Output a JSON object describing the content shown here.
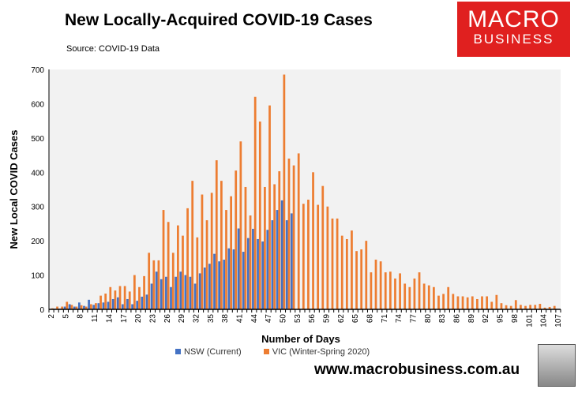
{
  "title": "New Locally-Acquired COVID-19 Cases",
  "source": "Source: COVID-19 Data",
  "logo": {
    "line1": "MACRO",
    "line2": "BUSINESS",
    "color": "#e0201f"
  },
  "footer_url": "www.macrobusiness.com.au",
  "chart_data": {
    "type": "bar",
    "xlabel": "Number of Days",
    "ylabel": "New Local COVID Cases",
    "ylim": [
      0,
      700
    ],
    "yticks": [
      0,
      100,
      200,
      300,
      400,
      500,
      600,
      700
    ],
    "x_start": 2,
    "x_end": 107,
    "x_tick_step": 3,
    "legend": "bottom",
    "grid": false,
    "series": [
      {
        "name": "NSW (Current)",
        "color": "#4472c4",
        "values": [
          0,
          2,
          2,
          8,
          15,
          8,
          20,
          10,
          28,
          13,
          18,
          20,
          22,
          30,
          35,
          15,
          30,
          15,
          25,
          37,
          43,
          75,
          110,
          88,
          95,
          65,
          95,
          110,
          100,
          95,
          75,
          105,
          122,
          133,
          162,
          140,
          145,
          178,
          175,
          236,
          168,
          208,
          235,
          205,
          198,
          232,
          260,
          290,
          318,
          260,
          280
        ]
      },
      {
        "name": "VIC (Winter-Spring 2020)",
        "color": "#ed7d31",
        "values": [
          3,
          8,
          8,
          22,
          13,
          8,
          12,
          8,
          15,
          18,
          40,
          46,
          65,
          55,
          68,
          68,
          52,
          100,
          65,
          97,
          165,
          143,
          143,
          290,
          255,
          165,
          245,
          215,
          295,
          375,
          210,
          335,
          260,
          340,
          435,
          375,
          290,
          330,
          405,
          490,
          357,
          274,
          620,
          548,
          357,
          595,
          365,
          403,
          685,
          440,
          420,
          455,
          308,
          320,
          400,
          305,
          360,
          300,
          265,
          265,
          215,
          205,
          230,
          170,
          175,
          200,
          108,
          145,
          140,
          108,
          110,
          90,
          105,
          75,
          65,
          90,
          108,
          75,
          70,
          65,
          40,
          45,
          65,
          45,
          38,
          38,
          35,
          38,
          30,
          38,
          38,
          22,
          42,
          18,
          12,
          10,
          27,
          13,
          10,
          13,
          13,
          16,
          5,
          7,
          10
        ]
      }
    ]
  }
}
